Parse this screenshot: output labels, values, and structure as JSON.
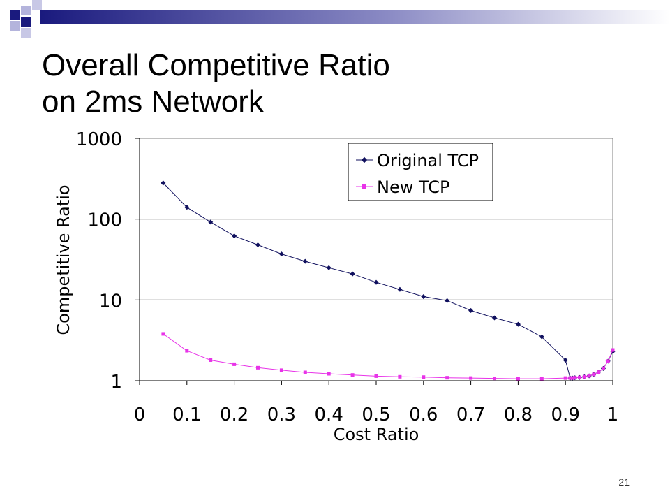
{
  "slide": {
    "title_line1": "Overall Competitive Ratio",
    "title_line2": "on 2ms Network",
    "page_number": "21"
  },
  "colors": {
    "accent_dark": "#1a1a7e",
    "accent_light": "#b4b4dc",
    "series_original": "#10105e",
    "series_new": "#e833e8"
  },
  "chart_data": {
    "type": "line",
    "ylabel": "Competitive Ratio",
    "xlabel": "Cost Ratio",
    "y_scale": "log",
    "ylim": [
      1,
      1000
    ],
    "xlim": [
      0,
      1
    ],
    "y_ticks": [
      1,
      10,
      100,
      1000
    ],
    "y_tick_labels": [
      "1",
      "10",
      "100",
      "1000"
    ],
    "x_ticks": [
      0,
      0.1,
      0.2,
      0.3,
      0.4,
      0.5,
      0.6,
      0.7,
      0.8,
      0.9,
      1
    ],
    "x_tick_labels": [
      "0",
      "0.1",
      "0.2",
      "0.3",
      "0.4",
      "0.5",
      "0.6",
      "0.7",
      "0.8",
      "0.9",
      "1"
    ],
    "grid": "horizontal",
    "legend_position": "top-right",
    "series": [
      {
        "name": "Original TCP",
        "color": "#10105e",
        "marker": "diamond",
        "x": [
          0.05,
          0.1,
          0.15,
          0.2,
          0.25,
          0.3,
          0.35,
          0.4,
          0.45,
          0.5,
          0.55,
          0.6,
          0.65,
          0.7,
          0.75,
          0.8,
          0.85,
          0.9,
          0.91,
          0.915,
          0.92,
          0.93,
          0.94,
          0.95,
          0.96,
          0.97,
          0.98,
          0.99,
          1.0
        ],
        "y": [
          280,
          140,
          92,
          62,
          48,
          37,
          30,
          25,
          21,
          16.5,
          13.5,
          11,
          9.8,
          7.4,
          6,
          5,
          3.5,
          1.8,
          1.08,
          1.08,
          1.09,
          1.1,
          1.12,
          1.15,
          1.2,
          1.28,
          1.42,
          1.75,
          2.3
        ]
      },
      {
        "name": "New TCP",
        "color": "#e833e8",
        "marker": "square",
        "x": [
          0.05,
          0.1,
          0.15,
          0.2,
          0.25,
          0.3,
          0.35,
          0.4,
          0.45,
          0.5,
          0.55,
          0.6,
          0.65,
          0.7,
          0.75,
          0.8,
          0.85,
          0.9,
          0.91,
          0.915,
          0.92,
          0.93,
          0.94,
          0.95,
          0.96,
          0.97,
          0.98,
          0.99,
          1.0
        ],
        "y": [
          3.8,
          2.35,
          1.8,
          1.6,
          1.45,
          1.35,
          1.27,
          1.22,
          1.18,
          1.14,
          1.12,
          1.11,
          1.09,
          1.08,
          1.07,
          1.06,
          1.06,
          1.08,
          1.08,
          1.08,
          1.09,
          1.1,
          1.12,
          1.15,
          1.2,
          1.28,
          1.42,
          1.75,
          2.4
        ]
      }
    ]
  }
}
